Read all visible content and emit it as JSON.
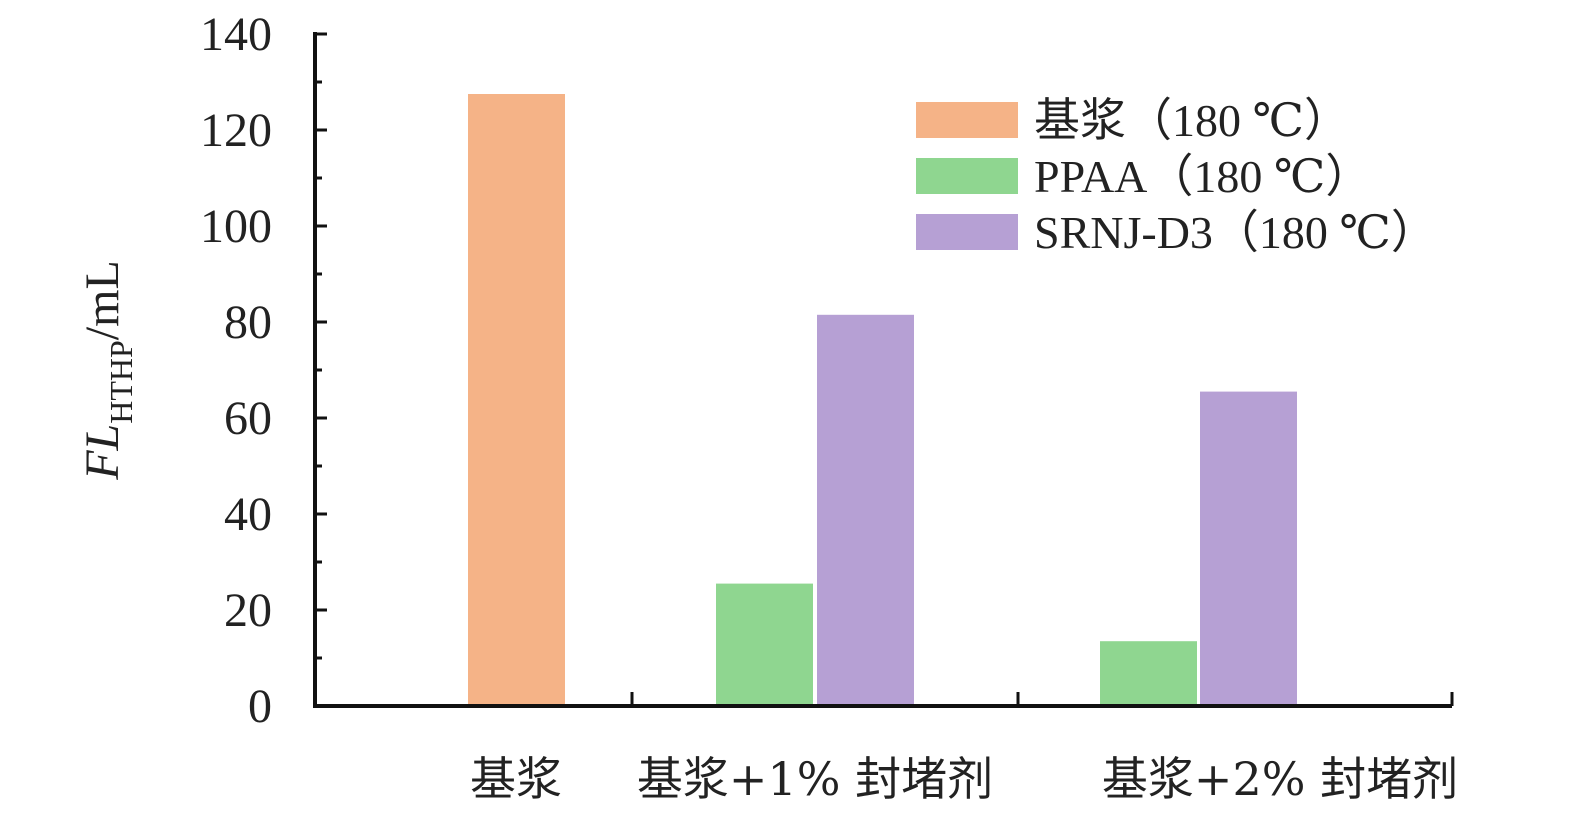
{
  "chart_data": {
    "type": "bar",
    "categories": [
      "基浆",
      "基浆+1% 封堵剂",
      "基浆+2% 封堵剂"
    ],
    "series": [
      {
        "name": "基浆（180 ℃）",
        "color": "#F5B387",
        "values": [
          127.5,
          null,
          null
        ]
      },
      {
        "name": "PPAA（180 ℃）",
        "color": "#8FD690",
        "values": [
          null,
          25.5,
          13.5
        ]
      },
      {
        "name": "SRNJ-D3（180 ℃）",
        "color": "#B6A0D4",
        "values": [
          null,
          81.5,
          65.5
        ]
      }
    ],
    "ylabel": {
      "main": "FL",
      "subscript": "HTHP",
      "unit": "/mL"
    },
    "ylim": [
      0,
      140
    ],
    "yticks": [
      0,
      20,
      40,
      60,
      80,
      100,
      120,
      140
    ],
    "grid": false,
    "legend_position": "top-right"
  }
}
